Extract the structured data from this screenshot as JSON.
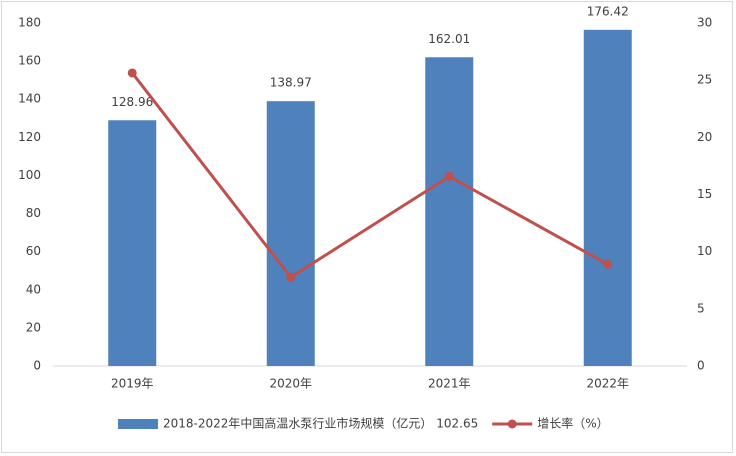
{
  "chart_data": {
    "type": "bar-line",
    "categories": [
      "2019年",
      "2020年",
      "2021年",
      "2022年"
    ],
    "series": [
      {
        "name": "2018-2022年中国高温水泵行业市场规模（亿元） 102.65",
        "type": "bar",
        "color": "#4f81bd",
        "values": [
          128.96,
          138.97,
          162.01,
          176.42
        ]
      },
      {
        "name": "增长率（%）",
        "type": "line",
        "axis": "y2",
        "color": "#c0504d",
        "values": [
          25.63,
          7.76,
          16.58,
          8.89
        ]
      }
    ],
    "ylim": [
      0,
      180
    ],
    "yticks": [
      0,
      20,
      40,
      60,
      80,
      100,
      120,
      140,
      160,
      180
    ],
    "y2lim": [
      0,
      30
    ],
    "y2ticks": [
      0,
      5,
      10,
      15,
      20,
      25,
      30
    ],
    "grid": false,
    "legend": "bottom"
  }
}
